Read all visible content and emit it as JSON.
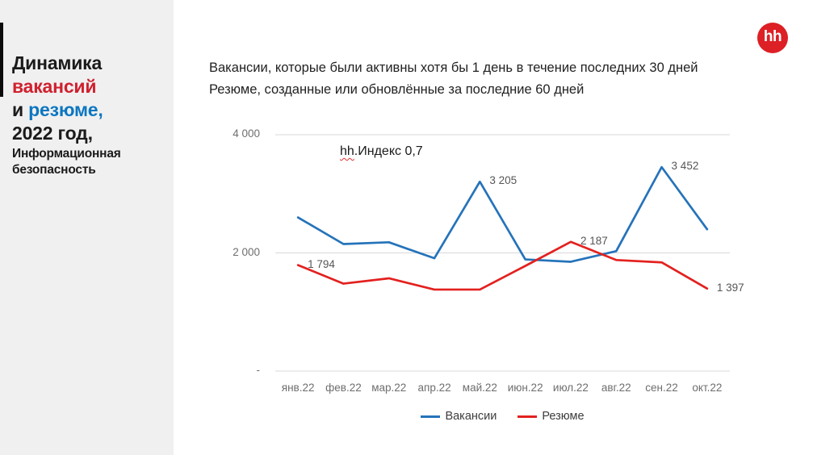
{
  "sidebar": {
    "title_line1": "Динамика",
    "title_line2": "вакансий",
    "title_line3_prefix": "и ",
    "title_line3_highlight": "резюме,",
    "title_line4": "2022 год,",
    "subtitle_line1": "Информационная",
    "subtitle_line2": "безопасность"
  },
  "header": {
    "subtitle_line1": "Вакансии, которые были активны хотя бы 1 день в течение последних 30 дней",
    "subtitle_line2": "Резюме, созданные или обновлённые за последние 60 дней",
    "logo_text": "hh"
  },
  "annotation": {
    "underlined": "hh",
    "rest": ".Индекс 0,7"
  },
  "colors": {
    "vacancies_line": "#2573ba",
    "resumes_line": "#e3211f",
    "logo_red": "#dc2026",
    "gridline": "#d9d9d9",
    "axis_text": "#6e6e6e"
  },
  "chart_data": {
    "type": "line",
    "title": "",
    "xlabel": "",
    "ylabel": "",
    "categories": [
      "янв.22",
      "фев.22",
      "мар.22",
      "апр.22",
      "май.22",
      "июн.22",
      "июл.22",
      "авг.22",
      "сен.22",
      "окт.22"
    ],
    "series": [
      {
        "name": "Вакансии",
        "color": "#2573ba",
        "values": [
          2600,
          2150,
          2180,
          1910,
          3205,
          1890,
          1850,
          2030,
          3452,
          2400
        ]
      },
      {
        "name": "Резюме",
        "color": "#e3211f",
        "values": [
          1794,
          1480,
          1570,
          1380,
          1380,
          1780,
          2187,
          1880,
          1840,
          1397
        ]
      }
    ],
    "point_labels": [
      {
        "series": 0,
        "index": 4,
        "text": "3 205"
      },
      {
        "series": 0,
        "index": 8,
        "text": "3 452"
      },
      {
        "series": 1,
        "index": 0,
        "text": "1 794"
      },
      {
        "series": 1,
        "index": 6,
        "text": "2 187"
      },
      {
        "series": 1,
        "index": 9,
        "text": "1 397"
      }
    ],
    "y_ticks": [
      {
        "value": 4000,
        "label": "4 000"
      },
      {
        "value": 2000,
        "label": "2 000"
      },
      {
        "value": 0,
        "label": "-"
      }
    ],
    "ylim": [
      0,
      4400
    ],
    "grid": "horizontal",
    "legend_position": "bottom"
  },
  "legend": [
    {
      "label": "Вакансии",
      "color": "#2573ba"
    },
    {
      "label": "Резюме",
      "color": "#e3211f"
    }
  ]
}
